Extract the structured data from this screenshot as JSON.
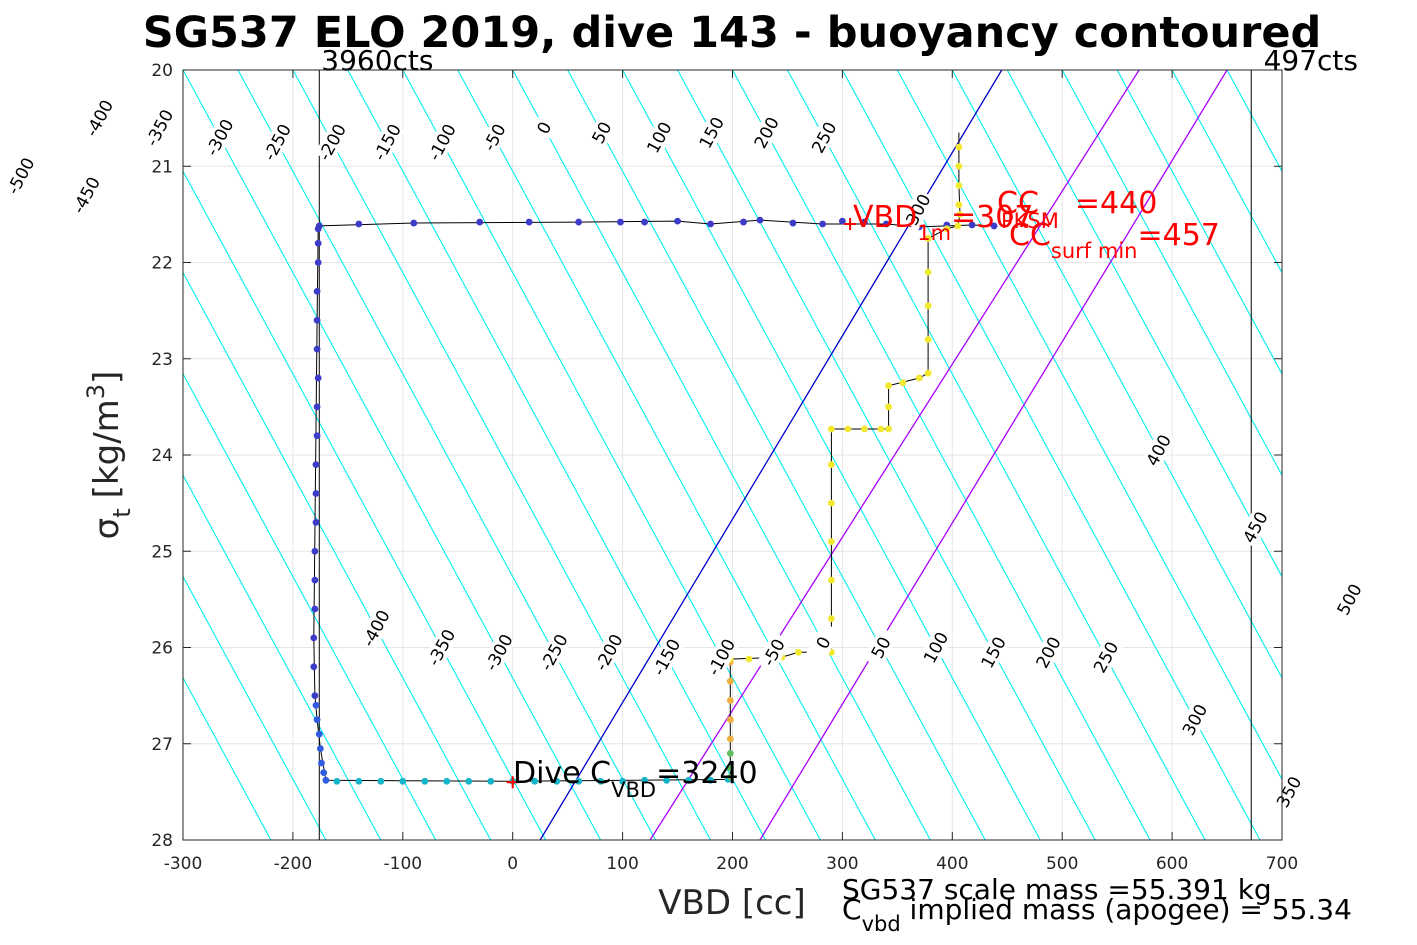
{
  "chart_data": {
    "type": "scatter",
    "title": "SG537 ELO 2019, dive 143 - buoyancy contoured",
    "xlabel": "VBD [cc]",
    "ylabel_main": "σ",
    "ylabel_sub": "t",
    "ylabel_unit": "[kg/m",
    "ylabel_sup": "3",
    "ylabel_close": "]",
    "xlim": [
      -300,
      700
    ],
    "ylim": [
      20,
      28
    ],
    "y_reversed": true,
    "grid": true,
    "xticks": [
      -300,
      -200,
      -100,
      0,
      100,
      200,
      300,
      400,
      500,
      600,
      700
    ],
    "yticks": [
      20,
      21,
      22,
      23,
      24,
      25,
      26,
      27,
      28
    ],
    "vlines": [
      {
        "x": -176,
        "label": "3960cts"
      },
      {
        "x": 672,
        "label": "497cts"
      }
    ],
    "buoyancy_slope_cc_per_sigma": 47.5,
    "contour_levels": [
      -600,
      -550,
      -500,
      -450,
      -400,
      -350,
      -300,
      -250,
      -200,
      -150,
      -100,
      -50,
      0,
      50,
      100,
      150,
      200,
      250,
      300,
      350,
      400,
      450,
      500,
      550,
      600,
      650,
      700,
      750,
      800,
      850
    ],
    "contour_labels_upper": [
      {
        "level": -500,
        "text": "-500",
        "sigma": 21.1
      },
      {
        "level": -450,
        "text": "-450",
        "sigma": 21.3
      },
      {
        "level": -400,
        "text": "-400",
        "sigma": 20.5
      },
      {
        "level": -350,
        "text": "-350",
        "sigma": 20.6
      },
      {
        "level": -300,
        "text": "-300",
        "sigma": 20.7
      },
      {
        "level": -250,
        "text": "-250",
        "sigma": 20.75
      },
      {
        "level": -200,
        "text": "-200",
        "sigma": 20.75
      },
      {
        "level": -150,
        "text": "-150",
        "sigma": 20.75
      },
      {
        "level": -100,
        "text": "-100",
        "sigma": 20.75
      },
      {
        "level": -50,
        "text": "-50",
        "sigma": 20.7
      },
      {
        "level": 0,
        "text": "0",
        "sigma": 20.6
      },
      {
        "level": 50,
        "text": "50",
        "sigma": 20.65
      },
      {
        "level": 100,
        "text": "100",
        "sigma": 20.7
      },
      {
        "level": 150,
        "text": "150",
        "sigma": 20.65
      },
      {
        "level": 200,
        "text": "200",
        "sigma": 20.65
      },
      {
        "level": 250,
        "text": "250",
        "sigma": 20.7
      },
      {
        "level": 300,
        "text": "300",
        "sigma": 21.45
      },
      {
        "level": 400,
        "text": "400",
        "sigma": 23.95
      },
      {
        "level": 450,
        "text": "450",
        "sigma": 24.75
      },
      {
        "level": 500,
        "text": "500",
        "sigma": 25.5
      }
    ],
    "contour_labels_lower": [
      {
        "level": -400,
        "text": "-400",
        "sigma": 25.8
      },
      {
        "level": -350,
        "text": "-350",
        "sigma": 26.0
      },
      {
        "level": -300,
        "text": "-300",
        "sigma": 26.05
      },
      {
        "level": -250,
        "text": "-250",
        "sigma": 26.05
      },
      {
        "level": -200,
        "text": "-200",
        "sigma": 26.05
      },
      {
        "level": -150,
        "text": "-150",
        "sigma": 26.1
      },
      {
        "level": -100,
        "text": "-100",
        "sigma": 26.1
      },
      {
        "level": -50,
        "text": "-50",
        "sigma": 26.05
      },
      {
        "level": 0,
        "text": "0",
        "sigma": 25.95
      },
      {
        "level": 50,
        "text": "50",
        "sigma": 26.0
      },
      {
        "level": 100,
        "text": "100",
        "sigma": 26.0
      },
      {
        "level": 150,
        "text": "150",
        "sigma": 26.05
      },
      {
        "level": 200,
        "text": "200",
        "sigma": 26.05
      },
      {
        "level": 250,
        "text": "250",
        "sigma": 26.1
      },
      {
        "level": 300,
        "text": "300",
        "sigma": 26.75
      },
      {
        "level": 350,
        "text": "350",
        "sigma": 27.5
      }
    ],
    "reference_lines": [
      {
        "name": "neutral",
        "color": "#0000cc",
        "points": [
          [
            25,
            28
          ],
          [
            445,
            20
          ]
        ]
      },
      {
        "name": "cc-1",
        "color": "#aa00ff",
        "points": [
          [
            125,
            28
          ],
          [
            570,
            20
          ]
        ]
      },
      {
        "name": "cc-2",
        "color": "#aa00ff",
        "points": [
          [
            225,
            28
          ],
          [
            650,
            20
          ]
        ]
      }
    ],
    "series": [
      {
        "color": "#3c3cc8",
        "points": [
          [
            -176,
            21.62
          ],
          [
            -140,
            21.6
          ],
          [
            -90,
            21.59
          ],
          [
            -30,
            21.58
          ],
          [
            15,
            21.58
          ],
          [
            60,
            21.58
          ],
          [
            98,
            21.58
          ],
          [
            120,
            21.58
          ],
          [
            150,
            21.57
          ],
          [
            180,
            21.6
          ],
          [
            210,
            21.58
          ],
          [
            225,
            21.56
          ],
          [
            255,
            21.59
          ],
          [
            282,
            21.6
          ],
          [
            300,
            21.57
          ],
          [
            320,
            21.58
          ],
          [
            340,
            21.6
          ],
          [
            370,
            21.63
          ],
          [
            395,
            21.61
          ],
          [
            418,
            21.61
          ],
          [
            438,
            21.62
          ]
        ]
      },
      {
        "color": "#3c3cc8",
        "points": [
          [
            -177,
            21.65
          ],
          [
            -177,
            21.8
          ],
          [
            -177,
            22.0
          ],
          [
            -178,
            22.3
          ],
          [
            -178,
            22.6
          ],
          [
            -178,
            22.9
          ],
          [
            -177,
            23.2
          ],
          [
            -178,
            23.5
          ],
          [
            -178,
            23.8
          ],
          [
            -179,
            24.1
          ],
          [
            -179,
            24.4
          ],
          [
            -179,
            24.7
          ],
          [
            -180,
            25.0
          ],
          [
            -180,
            25.3
          ],
          [
            -180,
            25.6
          ],
          [
            -181,
            25.9
          ],
          [
            -181,
            26.2
          ],
          [
            -180,
            26.5
          ]
        ]
      },
      {
        "color": "#2f5ce0",
        "points": [
          [
            -179,
            26.6
          ],
          [
            -178,
            26.75
          ],
          [
            -176,
            26.9
          ],
          [
            -175,
            27.05
          ],
          [
            -174,
            27.2
          ],
          [
            -172,
            27.3
          ],
          [
            -170,
            27.38
          ]
        ]
      },
      {
        "color": "#16b4c8",
        "points": [
          [
            -160,
            27.39
          ],
          [
            -140,
            27.39
          ],
          [
            -120,
            27.39
          ],
          [
            -100,
            27.39
          ],
          [
            -80,
            27.39
          ],
          [
            -60,
            27.39
          ],
          [
            -40,
            27.39
          ],
          [
            -20,
            27.39
          ],
          [
            0,
            27.39
          ],
          [
            20,
            27.39
          ],
          [
            40,
            27.39
          ],
          [
            60,
            27.39
          ],
          [
            80,
            27.39
          ],
          [
            100,
            27.39
          ],
          [
            120,
            27.38
          ],
          [
            140,
            27.38
          ],
          [
            160,
            27.38
          ],
          [
            180,
            27.38
          ],
          [
            196,
            27.37
          ]
        ]
      },
      {
        "color": "#60c060",
        "points": [
          [
            198,
            27.1
          ],
          [
            198,
            27.25
          ],
          [
            198,
            27.35
          ]
        ]
      },
      {
        "color": "#f0b040",
        "points": [
          [
            198,
            26.15
          ],
          [
            198,
            26.35
          ],
          [
            198,
            26.55
          ],
          [
            198,
            26.75
          ],
          [
            198,
            26.95
          ]
        ]
      },
      {
        "color": "#f2e830",
        "points": [
          [
            198,
            26.12
          ],
          [
            215,
            26.12
          ],
          [
            230,
            26.12
          ],
          [
            245,
            26.1
          ],
          [
            260,
            26.05
          ],
          [
            275,
            26.05
          ],
          [
            290,
            26.05
          ],
          [
            290,
            25.7
          ],
          [
            290,
            25.3
          ],
          [
            290,
            24.9
          ],
          [
            290,
            24.5
          ],
          [
            290,
            24.1
          ],
          [
            290,
            23.73
          ],
          [
            305,
            23.73
          ],
          [
            320,
            23.73
          ],
          [
            335,
            23.73
          ],
          [
            342,
            23.73
          ],
          [
            342,
            23.5
          ],
          [
            342,
            23.28
          ],
          [
            355,
            23.25
          ],
          [
            370,
            23.2
          ],
          [
            378,
            23.15
          ],
          [
            378,
            22.8
          ],
          [
            378,
            22.45
          ],
          [
            378,
            22.1
          ],
          [
            378,
            21.75
          ],
          [
            395,
            21.65
          ],
          [
            405,
            21.62
          ],
          [
            407,
            21.5
          ],
          [
            406,
            21.4
          ],
          [
            406,
            21.2
          ],
          [
            406,
            21.0
          ],
          [
            406,
            20.8
          ]
        ]
      }
    ],
    "profile_trace": [
      [
        406,
        20.65
      ],
      [
        406,
        20.8
      ],
      [
        406,
        21.2
      ],
      [
        407,
        21.5
      ],
      [
        405,
        21.62
      ],
      [
        395,
        21.65
      ],
      [
        378,
        21.75
      ],
      [
        378,
        23.15
      ],
      [
        370,
        23.2
      ],
      [
        342,
        23.28
      ],
      [
        342,
        23.73
      ],
      [
        290,
        23.73
      ],
      [
        290,
        26.05
      ],
      [
        260,
        26.05
      ],
      [
        245,
        26.1
      ],
      [
        198,
        26.12
      ],
      [
        198,
        27.37
      ],
      [
        0,
        27.39
      ],
      [
        -170,
        27.38
      ],
      [
        -175,
        27.05
      ],
      [
        -178,
        26.75
      ],
      [
        -180,
        26.5
      ],
      [
        -181,
        25.9
      ],
      [
        -178,
        22.6
      ],
      [
        -177,
        21.65
      ],
      [
        -176,
        21.62
      ],
      [
        -90,
        21.59
      ],
      [
        60,
        21.58
      ],
      [
        150,
        21.57
      ],
      [
        180,
        21.6
      ],
      [
        225,
        21.56
      ],
      [
        282,
        21.6
      ],
      [
        340,
        21.6
      ],
      [
        370,
        21.63
      ],
      [
        418,
        21.61
      ],
      [
        438,
        21.62
      ]
    ],
    "markers": [
      {
        "x": 307,
        "y": 21.6,
        "color": "#ff0000"
      },
      {
        "x": 0,
        "y": 27.4,
        "color": "#ff0000"
      }
    ]
  },
  "annotations": {
    "vbd_main": "VBD",
    "vbd_sub": "1m",
    "vbd_value": "=307",
    "cc_main": "CC",
    "cc_value": "=440",
    "cc_overlap": "PKSM",
    "ccsurf_main": "CC",
    "ccsurf_sub": "surf min",
    "ccsurf_value": "=457",
    "dive_main": "Dive C",
    "dive_sub": "VBD",
    "dive_value": "=3240"
  },
  "footer": {
    "line1": "SG537 scale mass =55.391 kg",
    "line2_main": "C",
    "line2_sub": "vbd",
    "line2_rest": " implied mass (apogee) = 55.34"
  }
}
